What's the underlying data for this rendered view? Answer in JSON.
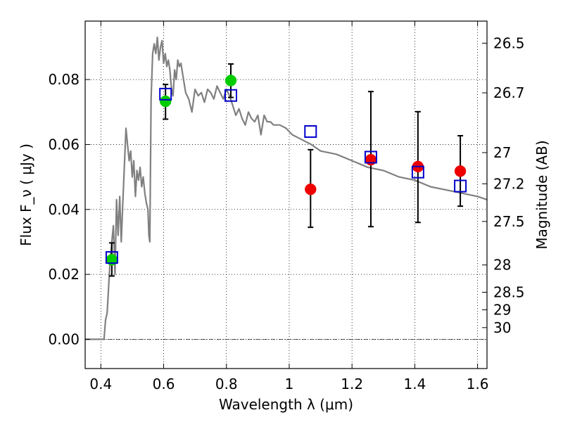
{
  "chart_data": {
    "type": "scatter",
    "xlabel": "Wavelength λ (μm)",
    "ylabel": "Flux F_ν ( μJy )",
    "ylabel_right": "Magnitude (AB)",
    "xlim": [
      0.35,
      1.63
    ],
    "ylim": [
      -0.009,
      0.098
    ],
    "grid": true,
    "x_ticks": [
      0.4,
      0.6,
      0.8,
      1.0,
      1.2,
      1.4,
      1.6
    ],
    "x_tick_labels": [
      "0.4",
      "0.6",
      "0.8",
      "1",
      "1.2",
      "1.4",
      "1.6"
    ],
    "y_ticks": [
      0.0,
      0.02,
      0.04,
      0.06,
      0.08
    ],
    "y_tick_labels": [
      "0.00",
      "0.02",
      "0.04",
      "0.06",
      "0.08"
    ],
    "right_ticks": [
      {
        "label": "26.5",
        "flux": 0.0912
      },
      {
        "label": "26.7",
        "flux": 0.0759
      },
      {
        "label": "27",
        "flux": 0.0575
      },
      {
        "label": "27.2",
        "flux": 0.0479
      },
      {
        "label": "27.5",
        "flux": 0.0363
      },
      {
        "label": "28",
        "flux": 0.0229
      },
      {
        "label": "28.5",
        "flux": 0.0145
      },
      {
        "label": "29",
        "flux": 0.0091
      },
      {
        "label": "30",
        "flux": 0.0036
      }
    ],
    "colors": {
      "model": "#808080",
      "green": "#00cc00",
      "red": "#ee0000",
      "square": "#0000cc",
      "errorbar": "#000000"
    },
    "model_spectrum": {
      "name": "",
      "x": [
        0.35,
        0.4,
        0.41,
        0.415,
        0.42,
        0.43,
        0.44,
        0.445,
        0.45,
        0.455,
        0.46,
        0.465,
        0.47,
        0.48,
        0.485,
        0.49,
        0.495,
        0.5,
        0.505,
        0.51,
        0.515,
        0.52,
        0.525,
        0.53,
        0.535,
        0.54,
        0.545,
        0.55,
        0.553,
        0.556,
        0.56,
        0.565,
        0.57,
        0.575,
        0.58,
        0.585,
        0.59,
        0.595,
        0.6,
        0.605,
        0.61,
        0.615,
        0.62,
        0.625,
        0.63,
        0.635,
        0.64,
        0.645,
        0.65,
        0.655,
        0.66,
        0.67,
        0.68,
        0.69,
        0.7,
        0.71,
        0.72,
        0.73,
        0.74,
        0.75,
        0.76,
        0.77,
        0.78,
        0.79,
        0.8,
        0.81,
        0.82,
        0.83,
        0.84,
        0.85,
        0.86,
        0.87,
        0.88,
        0.89,
        0.9,
        0.91,
        0.92,
        0.93,
        0.94,
        0.95,
        0.97,
        0.99,
        1.01,
        1.03,
        1.05,
        1.07,
        1.1,
        1.15,
        1.2,
        1.25,
        1.3,
        1.35,
        1.4,
        1.45,
        1.5,
        1.55,
        1.6,
        1.63
      ],
      "y": [
        0.0,
        0.0,
        0.0,
        0.006,
        0.008,
        0.025,
        0.035,
        0.02,
        0.043,
        0.032,
        0.044,
        0.03,
        0.042,
        0.065,
        0.06,
        0.055,
        0.058,
        0.05,
        0.055,
        0.044,
        0.052,
        0.049,
        0.053,
        0.047,
        0.05,
        0.045,
        0.042,
        0.04,
        0.032,
        0.03,
        0.074,
        0.088,
        0.091,
        0.088,
        0.093,
        0.086,
        0.09,
        0.092,
        0.085,
        0.088,
        0.084,
        0.086,
        0.083,
        0.077,
        0.075,
        0.083,
        0.08,
        0.086,
        0.084,
        0.085,
        0.082,
        0.076,
        0.074,
        0.07,
        0.077,
        0.075,
        0.076,
        0.073,
        0.077,
        0.076,
        0.074,
        0.078,
        0.076,
        0.074,
        0.077,
        0.075,
        0.072,
        0.069,
        0.071,
        0.068,
        0.066,
        0.07,
        0.068,
        0.067,
        0.069,
        0.063,
        0.069,
        0.067,
        0.067,
        0.066,
        0.066,
        0.065,
        0.063,
        0.062,
        0.061,
        0.06,
        0.058,
        0.057,
        0.055,
        0.053,
        0.052,
        0.05,
        0.049,
        0.047,
        0.046,
        0.045,
        0.044,
        0.043
      ]
    },
    "points": [
      {
        "group": "green",
        "x": 0.435,
        "y": 0.0245,
        "yerr_lo": 0.0195,
        "yerr_hi": 0.0297
      },
      {
        "group": "green",
        "x": 0.606,
        "y": 0.0733,
        "yerr_lo": 0.0678,
        "yerr_hi": 0.0785
      },
      {
        "group": "green",
        "x": 0.814,
        "y": 0.0797,
        "yerr_lo": 0.0745,
        "yerr_hi": 0.0848
      },
      {
        "group": "red",
        "x": 1.068,
        "y": 0.0462,
        "yerr_lo": 0.0345,
        "yerr_hi": 0.0584
      },
      {
        "group": "red",
        "x": 1.26,
        "y": 0.0553,
        "yerr_lo": 0.0347,
        "yerr_hi": 0.0763
      },
      {
        "group": "red",
        "x": 1.41,
        "y": 0.0532,
        "yerr_lo": 0.036,
        "yerr_hi": 0.0701
      },
      {
        "group": "red",
        "x": 1.545,
        "y": 0.0518,
        "yerr_lo": 0.041,
        "yerr_hi": 0.0627
      }
    ],
    "model_points": [
      {
        "x": 0.435,
        "y": 0.0252
      },
      {
        "x": 0.606,
        "y": 0.0755
      },
      {
        "x": 0.814,
        "y": 0.0751
      },
      {
        "x": 1.068,
        "y": 0.064
      },
      {
        "x": 1.26,
        "y": 0.0561
      },
      {
        "x": 1.41,
        "y": 0.0515
      },
      {
        "x": 1.545,
        "y": 0.0472
      }
    ]
  }
}
